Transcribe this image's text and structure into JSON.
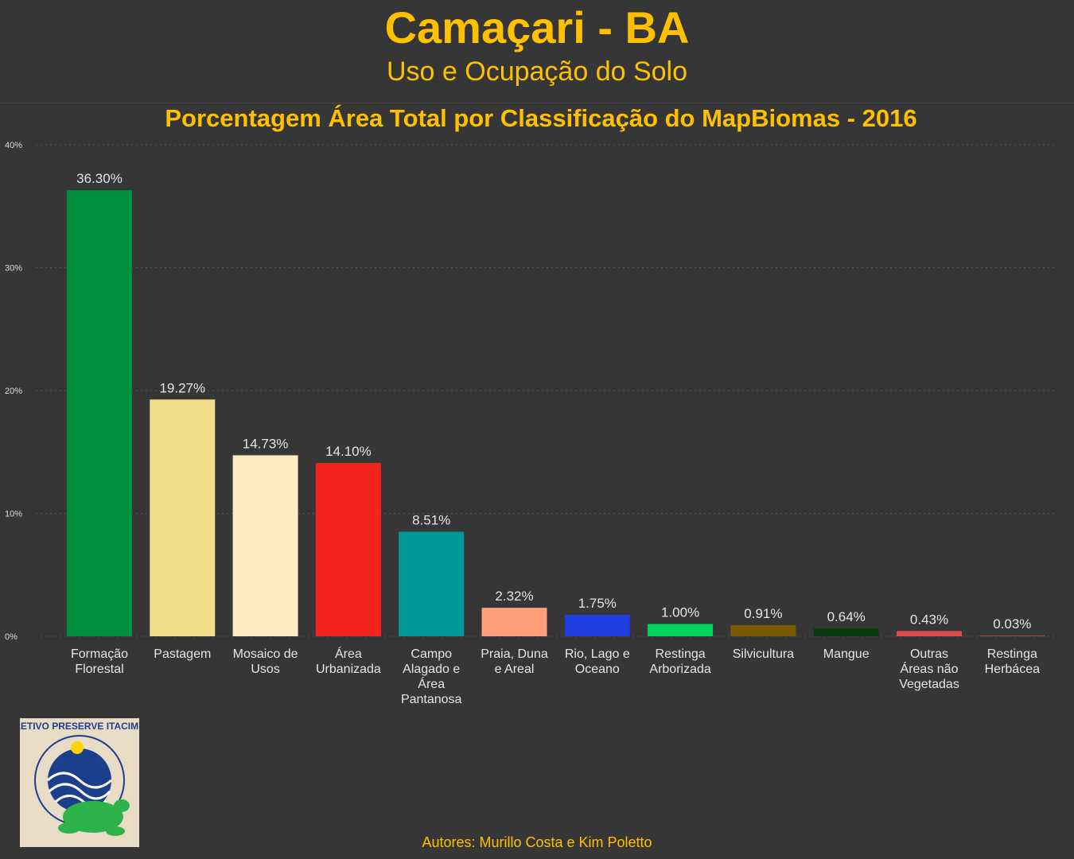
{
  "header": {
    "title": "Camaçari - BA",
    "subtitle": "Uso e Ocupação do Solo"
  },
  "footer": {
    "authors": "Autores: Murillo Costa e Kim Poletto"
  },
  "logo": {
    "text": "COLETIVO PRESERVE ITACIMIRIM",
    "icon": "sea-turtle-logo-icon"
  },
  "colors": {
    "accent": "#ffc000",
    "background": "#363636",
    "gridline": "#555555",
    "text": "#e6e6e6"
  },
  "chart_data": {
    "type": "bar",
    "title": "Porcentagem Área Total por Classificação do MapBiomas - 2016",
    "xlabel": "",
    "ylabel": "",
    "ylim": [
      0,
      40
    ],
    "yticks": [
      "0%",
      "10%",
      "20%",
      "30%",
      "40%"
    ],
    "ytick_values": [
      0,
      10,
      20,
      30,
      40
    ],
    "grid": true,
    "categories": [
      [
        "Formação",
        "Florestal"
      ],
      [
        "Pastagem"
      ],
      [
        "Mosaico de",
        "Usos"
      ],
      [
        "Área",
        "Urbanizada"
      ],
      [
        "Campo",
        "Alagado e",
        "Área",
        "Pantanosa"
      ],
      [
        "Praia, Duna",
        "e Areal"
      ],
      [
        "Rio, Lago e",
        "Oceano"
      ],
      [
        "Restinga",
        "Arborizada"
      ],
      [
        "Silvicultura"
      ],
      [
        "Mangue"
      ],
      [
        "Outras",
        "Áreas não",
        "Vegetadas"
      ],
      [
        "Restinga",
        "Herbácea"
      ]
    ],
    "values": [
      36.3,
      19.27,
      14.73,
      14.1,
      8.51,
      2.32,
      1.75,
      1.0,
      0.91,
      0.64,
      0.43,
      0.03
    ],
    "value_labels": [
      "36.30%",
      "19.27%",
      "14.73%",
      "14.10%",
      "8.51%",
      "2.32%",
      "1.75%",
      "1.00%",
      "0.91%",
      "0.64%",
      "0.43%",
      "0.03%"
    ],
    "bar_colors": [
      "#008f3e",
      "#f0dc8a",
      "#fdebc3",
      "#f5231d",
      "#009999",
      "#ffa07a",
      "#1f3de0",
      "#00d45a",
      "#7a5a00",
      "#0b3a12",
      "#e04b4b",
      "#a05020"
    ]
  }
}
